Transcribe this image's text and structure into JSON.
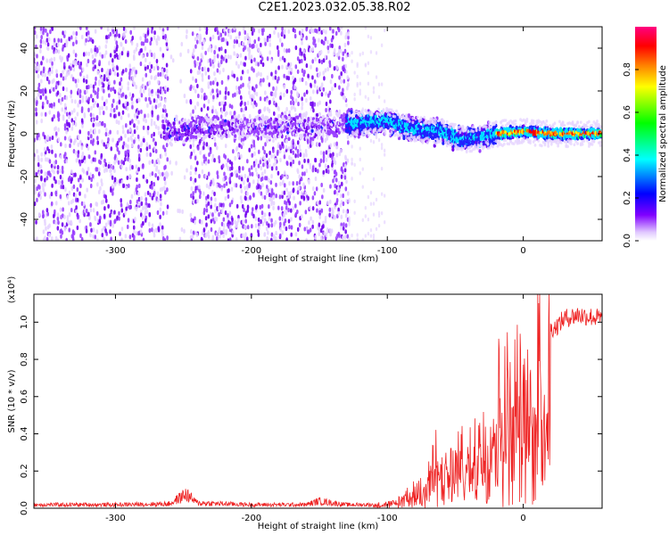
{
  "title": "C2E1.2023.032.05.38.R02",
  "chart_data": [
    {
      "type": "heatmap",
      "xlabel": "Height of straight line (km)",
      "ylabel": "Frequency (Hz)",
      "xlim": [
        -360,
        58
      ],
      "ylim": [
        -50,
        50
      ],
      "x_ticks": [
        -300,
        -200,
        -100,
        0
      ],
      "x_tick_labels": [
        "-300",
        "-200",
        "-100",
        "0"
      ],
      "y_ticks": [
        -40,
        -20,
        0,
        20,
        40
      ],
      "y_tick_labels": [
        "-40",
        "-20",
        "0",
        "20",
        "40"
      ],
      "colorbar": {
        "label": "Normalized spectral amplitude",
        "range": [
          0,
          1
        ],
        "ticks": [
          0.0,
          0.2,
          0.4,
          0.6,
          0.8
        ],
        "tick_labels": [
          "0.0",
          "0.2",
          "0.4",
          "0.6",
          "0.8"
        ],
        "colors": [
          "#ffffff",
          "#e0c8ff",
          "#8000ff",
          "#0000ff",
          "#00ffff",
          "#00ff00",
          "#ffff00",
          "#ff8000",
          "#ff0000",
          "#ff0080"
        ]
      },
      "centerline": [
        {
          "x": -255,
          "y": 1
        },
        {
          "x": -240,
          "y": 3
        },
        {
          "x": -160,
          "y": 3
        },
        {
          "x": -120,
          "y": 5
        },
        {
          "x": -100,
          "y": 6
        },
        {
          "x": -80,
          "y": 2
        },
        {
          "x": -60,
          "y": 1
        },
        {
          "x": -45,
          "y": -3
        },
        {
          "x": -35,
          "y": -2
        },
        {
          "x": -20,
          "y": 0
        },
        {
          "x": 0,
          "y": 1
        },
        {
          "x": 20,
          "y": 0
        },
        {
          "x": 58,
          "y": 0
        }
      ]
    },
    {
      "type": "line",
      "xlabel": "Height of straight line (km)",
      "ylabel": "SNR (10 * v/v)",
      "y_multiplier": "(x10⁴)",
      "xlim": [
        -360,
        58
      ],
      "ylim": [
        0,
        1.15
      ],
      "x_ticks": [
        -300,
        -200,
        -100,
        0
      ],
      "x_tick_labels": [
        "-300",
        "-200",
        "-100",
        "0"
      ],
      "y_ticks": [
        0.0,
        0.2,
        0.4,
        0.6,
        0.8,
        1.0
      ],
      "y_tick_labels": [
        "0.0",
        "0.2",
        "0.4",
        "0.6",
        "0.8",
        "1.0"
      ],
      "color": "#ee2222",
      "series": [
        {
          "x": [
            -360,
            -300,
            -260,
            -248,
            -240,
            -200,
            -160,
            -150,
            -130,
            -110,
            -95,
            -85,
            -75,
            -70,
            -65,
            -60,
            -55,
            -50,
            -45,
            -40,
            -35,
            -30,
            -25,
            -20,
            -15,
            -10,
            -5,
            0,
            5,
            10,
            15,
            20,
            25,
            30,
            40,
            50,
            58
          ],
          "y": [
            0.02,
            0.02,
            0.025,
            0.08,
            0.03,
            0.02,
            0.02,
            0.04,
            0.02,
            0.02,
            0.03,
            0.08,
            0.12,
            0.18,
            0.3,
            0.2,
            0.22,
            0.26,
            0.3,
            0.28,
            0.35,
            0.45,
            0.55,
            0.6,
            0.68,
            0.65,
            0.7,
            0.6,
            0.62,
            0.85,
            0.95,
            0.98,
            1.0,
            1.04,
            1.06,
            1.05,
            1.04
          ]
        }
      ]
    }
  ]
}
